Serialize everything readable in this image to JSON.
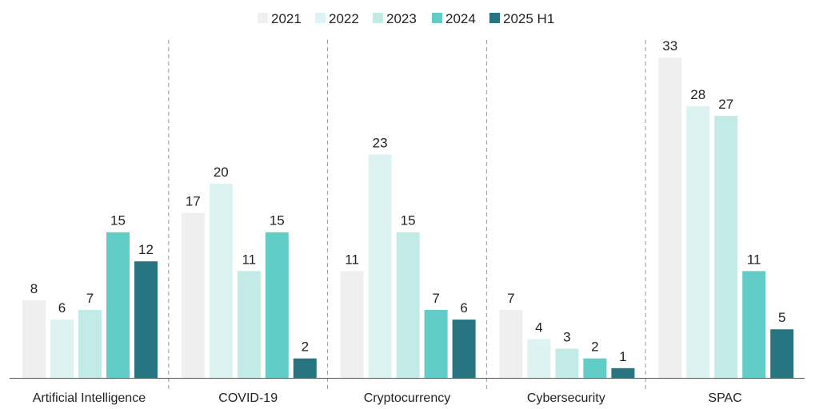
{
  "chart_data": {
    "type": "bar",
    "categories": [
      "Artificial Intelligence",
      "COVID-19",
      "Cryptocurrency",
      "Cybersecurity",
      "SPAC"
    ],
    "series": [
      {
        "name": "2021",
        "color": "#efefef",
        "values": [
          8,
          17,
          11,
          7,
          33
        ]
      },
      {
        "name": "2022",
        "color": "#ddf3f1",
        "values": [
          6,
          20,
          23,
          4,
          28
        ]
      },
      {
        "name": "2023",
        "color": "#c2ebe8",
        "values": [
          7,
          11,
          15,
          3,
          27
        ]
      },
      {
        "name": "2024",
        "color": "#62ccc6",
        "values": [
          15,
          15,
          7,
          2,
          11
        ]
      },
      {
        "name": "2025 H1",
        "color": "#277580",
        "values": [
          12,
          2,
          6,
          1,
          5
        ]
      }
    ],
    "title": "",
    "xlabel": "",
    "ylabel": "",
    "ylim": [
      0,
      33
    ],
    "legend_position": "top-center",
    "grid": false,
    "separators": "dashed-vertical-between-categories"
  }
}
